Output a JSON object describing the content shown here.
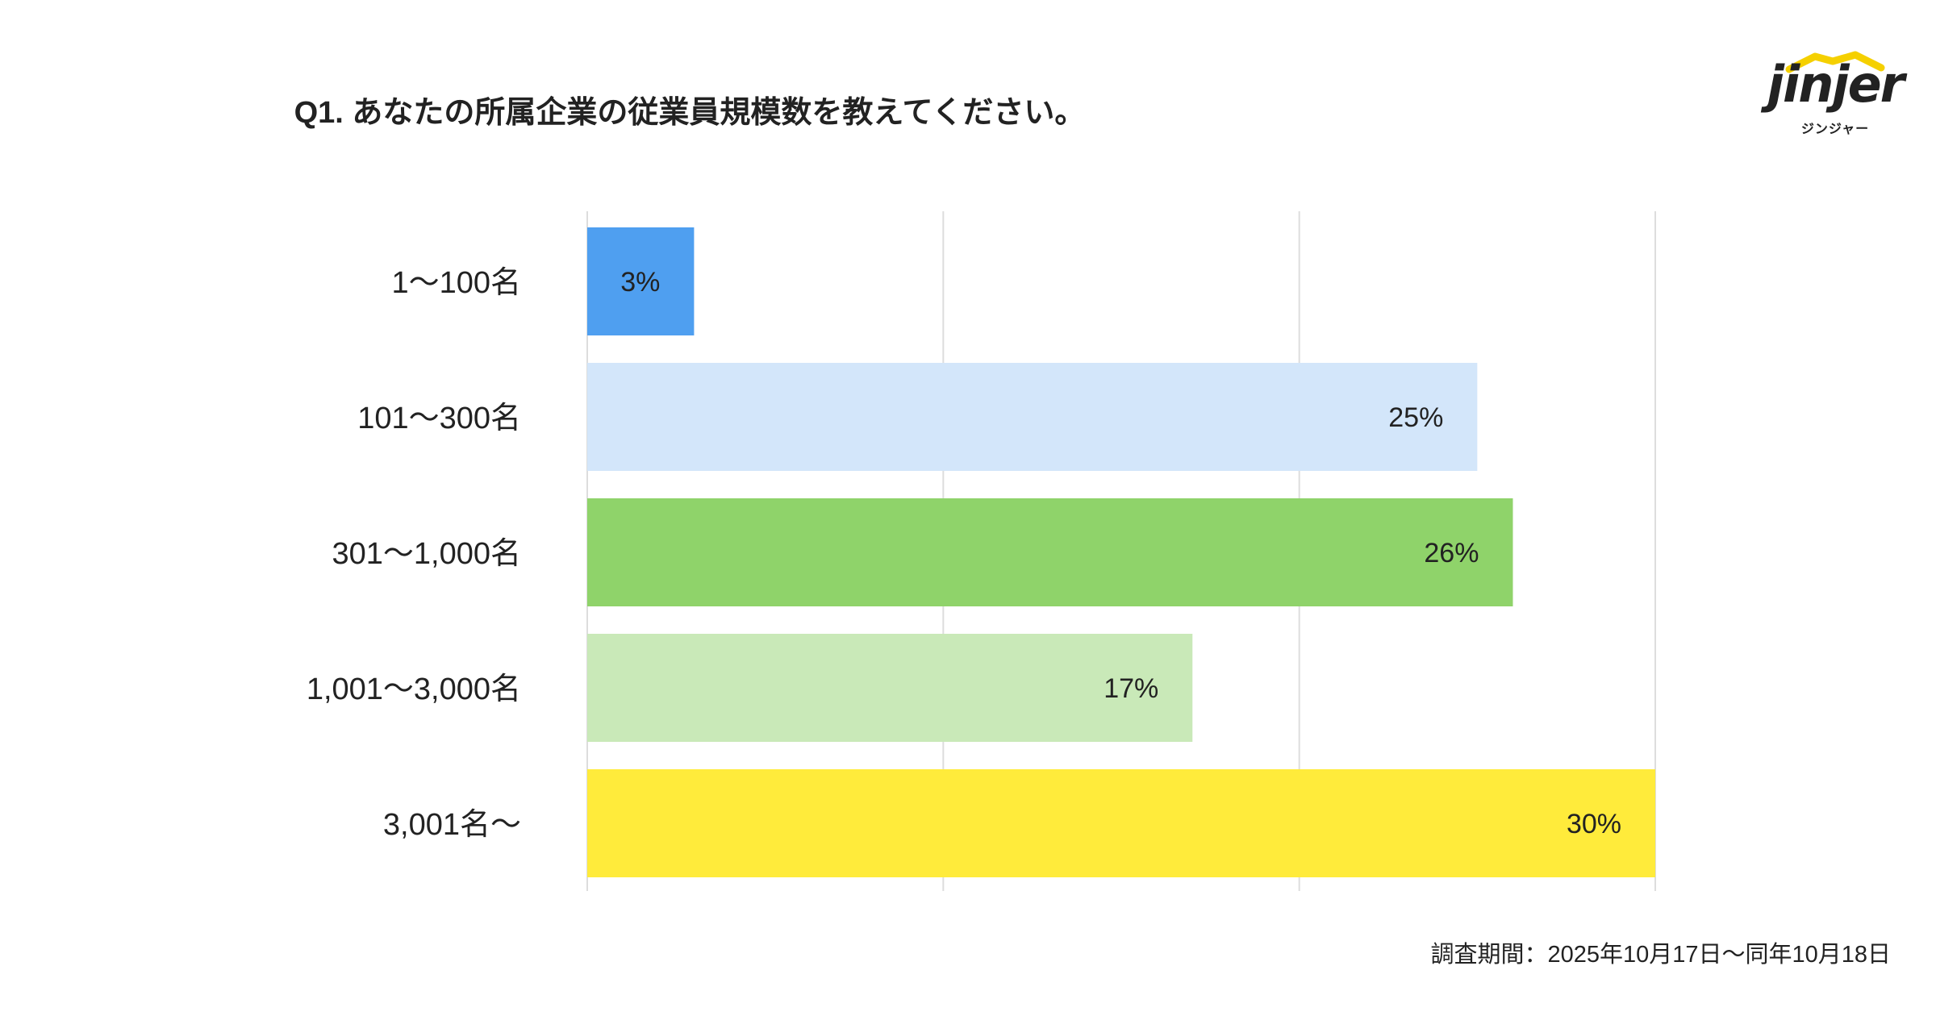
{
  "chart_data": {
    "type": "bar",
    "orientation": "horizontal",
    "title": "Q1. あなたの所属企業の従業員規模数を教えてください。",
    "categories": [
      "1〜100名",
      "101〜300名",
      "301〜1,000名",
      "1,001〜3,000名",
      "3,001名〜"
    ],
    "values": [
      3,
      25,
      26,
      17,
      30
    ],
    "value_labels": [
      "3%",
      "25%",
      "26%",
      "17%",
      "30%"
    ],
    "colors": [
      "#4F9FF0",
      "#D3E6FA",
      "#8FD36A",
      "#C9E9B8",
      "#FFEB3B"
    ],
    "xlim": [
      0,
      30
    ],
    "grid": true,
    "gridline_values": [
      0,
      10,
      20,
      30
    ],
    "xlabel": "",
    "ylabel": ""
  },
  "logo": {
    "wordmark": "jinjer",
    "subtitle": "ジンジャー",
    "accent": "#F5D000"
  },
  "footnote": "調査期間：2025年10月17日〜同年10月18日"
}
